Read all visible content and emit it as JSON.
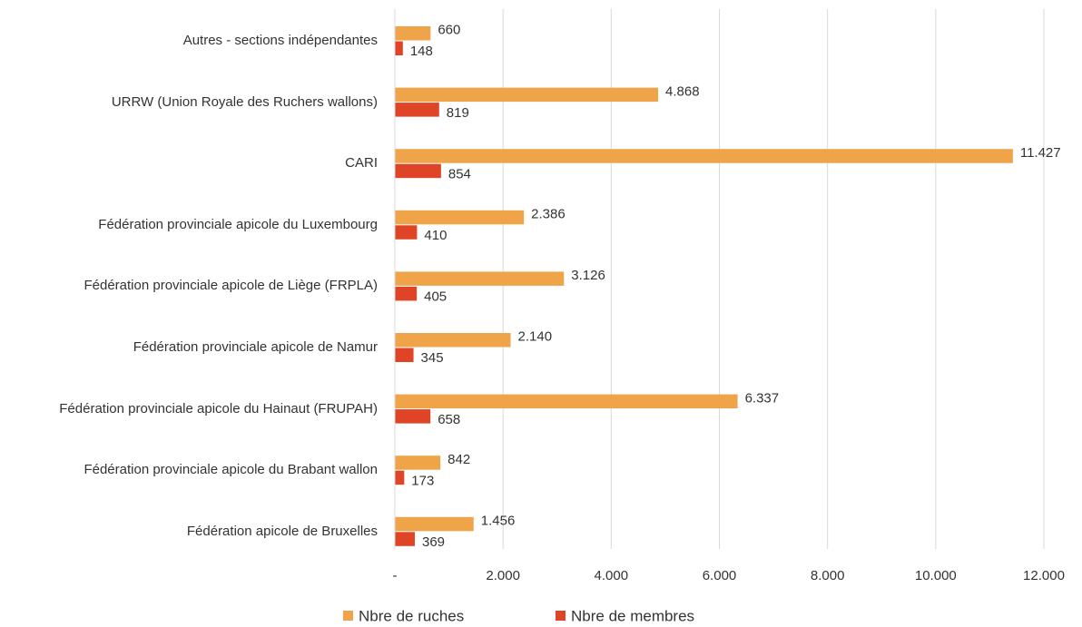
{
  "chart_data": {
    "type": "hbar",
    "categories": [
      "Autres - sections indépendantes",
      "URRW (Union Royale des Ruchers wallons)",
      "CARI",
      "Fédération provinciale apicole du Luxembourg",
      "Fédération provinciale apicole de Liège (FRPLA)",
      "Fédération provinciale apicole de Namur",
      "Fédération provinciale apicole du Hainaut (FRUPAH)",
      "Fédération provinciale apicole du Brabant wallon",
      "Fédération apicole de Bruxelles"
    ],
    "series": [
      {
        "name": "Nbre de ruches",
        "color": "#f0a449",
        "values": [
          660,
          4868,
          11427,
          2386,
          3126,
          2140,
          6337,
          842,
          1456
        ],
        "value_labels": [
          "660",
          "4.868",
          "11.427",
          "2.386",
          "3.126",
          "2.140",
          "6.337",
          "842",
          "1.456"
        ]
      },
      {
        "name": "Nbre de membres",
        "color": "#e04427",
        "values": [
          148,
          819,
          854,
          410,
          405,
          345,
          658,
          173,
          369
        ],
        "value_labels": [
          "148",
          "819",
          "854",
          "410",
          "405",
          "345",
          "658",
          "173",
          "369"
        ]
      }
    ],
    "xlim": [
      0,
      12000
    ],
    "xticks": [
      {
        "value": 0,
        "label": "-"
      },
      {
        "value": 2000,
        "label": "2.000"
      },
      {
        "value": 4000,
        "label": "4.000"
      },
      {
        "value": 6000,
        "label": "6.000"
      },
      {
        "value": 8000,
        "label": "8.000"
      },
      {
        "value": 10000,
        "label": "10.000"
      },
      {
        "value": 12000,
        "label": "12.000"
      }
    ],
    "grid": true,
    "legend": "bottom"
  }
}
